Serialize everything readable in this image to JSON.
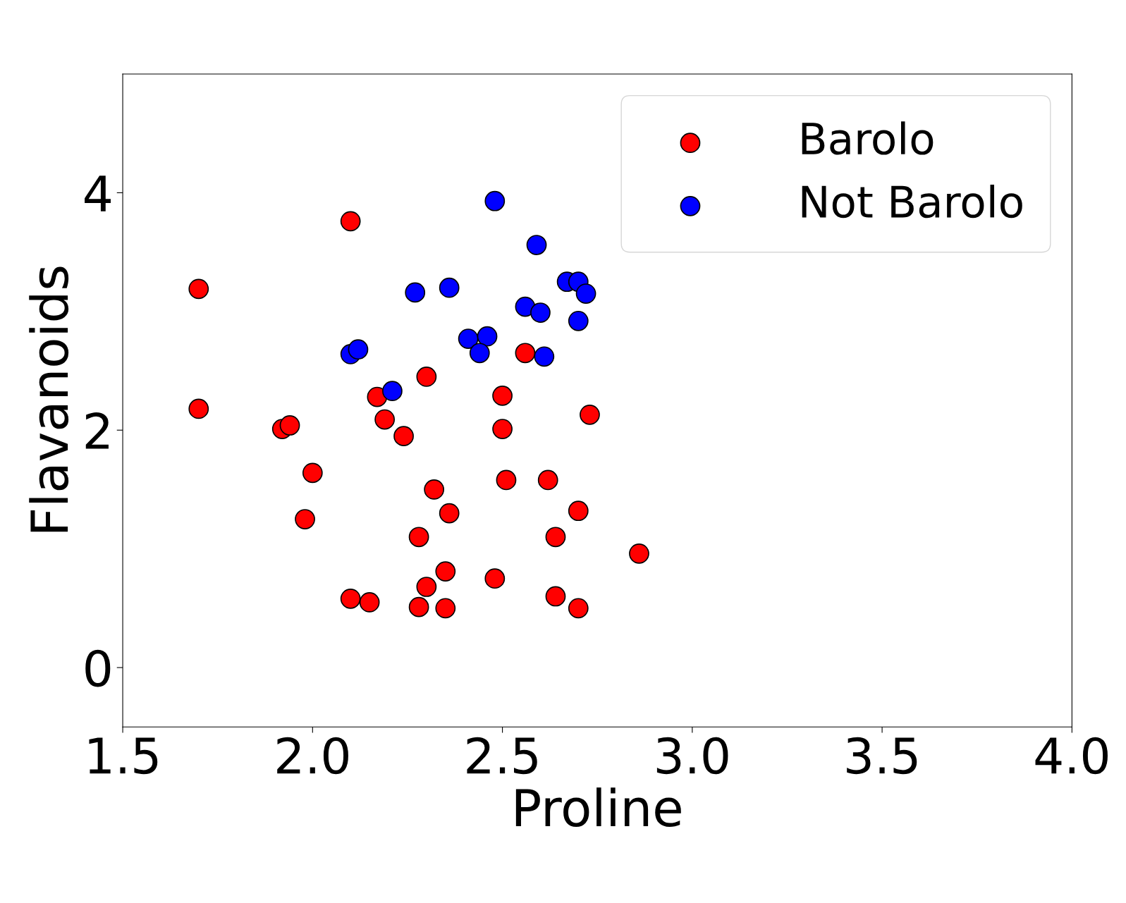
{
  "chart_data": {
    "type": "scatter",
    "xlabel": "Proline",
    "ylabel": "Flavanoids",
    "xlim": [
      1.5,
      4.0
    ],
    "xticks": [
      {
        "value": 1.5,
        "label": "1.5"
      },
      {
        "value": 2.0,
        "label": "2.0"
      },
      {
        "value": 2.5,
        "label": "2.5"
      },
      {
        "value": 3.0,
        "label": "3.0"
      },
      {
        "value": 3.5,
        "label": "3.5"
      },
      {
        "value": 4.0,
        "label": "4.0"
      }
    ],
    "ylim": [
      -0.5,
      5.0
    ],
    "yticks": [
      0,
      2,
      4
    ],
    "legend": "top right",
    "grid": false,
    "marker": "circle",
    "series": [
      {
        "name": "Barolo",
        "color": "#ff0000",
        "x": [
          1.7,
          2.1,
          1.7,
          1.92,
          1.94,
          2.0,
          1.98,
          2.1,
          2.15,
          2.17,
          2.19,
          2.24,
          2.3,
          2.28,
          2.3,
          2.28,
          2.35,
          2.35,
          2.32,
          2.36,
          2.48,
          2.5,
          2.5,
          2.51,
          2.56,
          2.62,
          2.64,
          2.64,
          2.7,
          2.7,
          2.73,
          2.86
        ],
        "values": [
          3.19,
          3.76,
          2.18,
          2.01,
          2.04,
          1.64,
          1.25,
          0.58,
          0.55,
          2.28,
          2.09,
          1.95,
          2.45,
          1.1,
          0.68,
          0.51,
          0.5,
          0.81,
          1.5,
          1.3,
          0.75,
          2.29,
          2.01,
          1.58,
          2.65,
          1.58,
          1.1,
          0.6,
          1.32,
          0.5,
          2.13,
          0.96
        ]
      },
      {
        "name": "Not Barolo",
        "color": "#0000ff",
        "x": [
          2.48,
          2.59,
          2.27,
          2.36,
          2.67,
          2.7,
          2.72,
          2.56,
          2.6,
          2.7,
          2.41,
          2.46,
          2.44,
          2.61,
          2.1,
          2.12,
          2.21
        ],
        "values": [
          3.93,
          3.56,
          3.16,
          3.2,
          3.25,
          3.25,
          3.15,
          3.04,
          2.99,
          2.92,
          2.77,
          2.79,
          2.65,
          2.62,
          2.64,
          2.68,
          2.33
        ]
      }
    ]
  }
}
